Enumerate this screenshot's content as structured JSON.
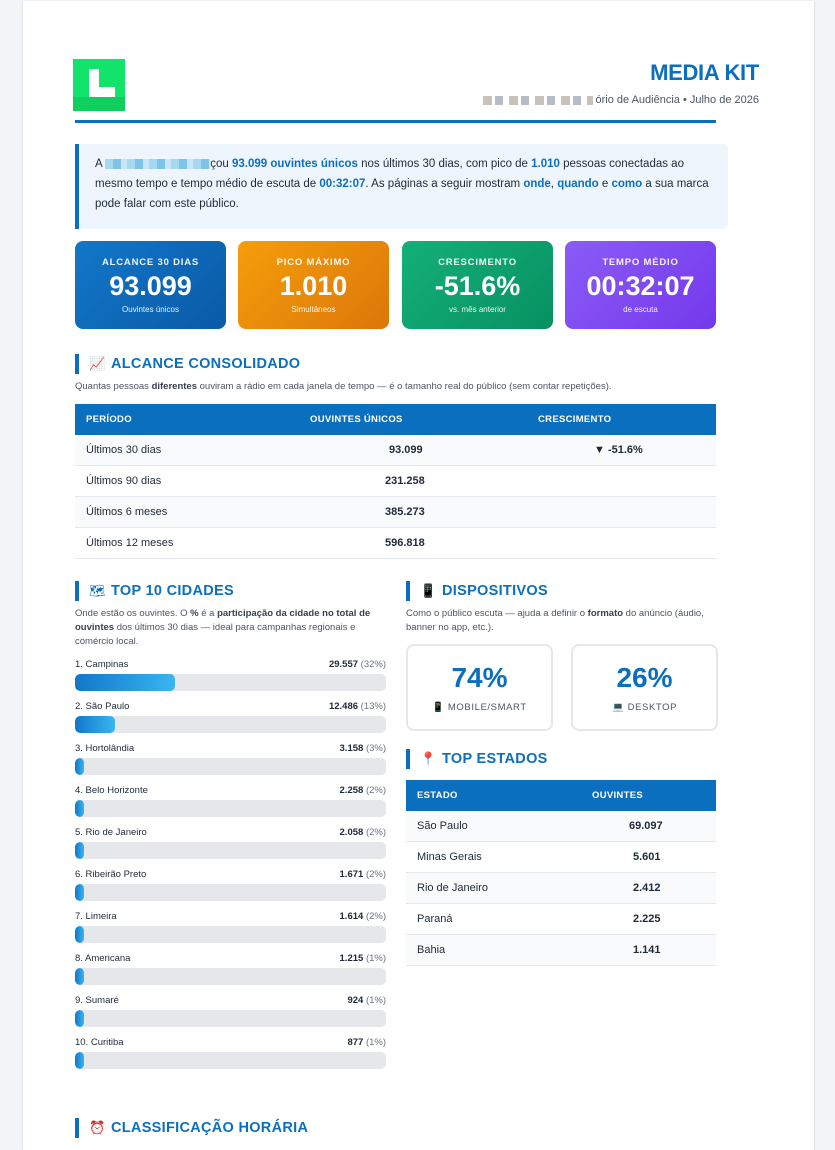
{
  "header": {
    "title": "MEDIA KIT",
    "subtitle_visible": "ório de Audiência • Julho de 2026"
  },
  "intro": {
    "lead": "A",
    "part1": "çou ",
    "listeners": "93.099 ouvintes únicos",
    "part2": " nos últimos 30 dias, com pico de ",
    "peak": "1.010",
    "part3": " pessoas conectadas ao mesmo tempo e tempo médio de escuta de ",
    "time": "00:32:07",
    "part4": ". As páginas a seguir mostram ",
    "w1": "onde",
    "comma": ", ",
    "w2": "quando",
    "part5": " e ",
    "w3": "como",
    "part6": " a sua marca pode falar com este público."
  },
  "kpis": [
    {
      "label": "ALCANCE 30 DIAS",
      "value": "93.099",
      "sub": "Ouvintes únicos"
    },
    {
      "label": "PICO MÁXIMO",
      "value": "1.010",
      "sub": "Simultâneos"
    },
    {
      "label": "CRESCIMENTO",
      "value": "-51.6%",
      "sub": "vs. mês anterior"
    },
    {
      "label": "TEMPO MÉDIO",
      "value": "00:32:07",
      "sub": "de escuta"
    }
  ],
  "reach": {
    "title": "ALCANCE CONSOLIDADO",
    "icon": "chart-icon",
    "desc_a": "Quantas pessoas ",
    "desc_b": "diferentes",
    "desc_c": " ouviram a rádio em cada janela de tempo — é o tamanho real do público (sem contar repetições).",
    "columns": [
      "PERÍODO",
      "OUVINTES ÚNICOS",
      "CRESCIMENTO"
    ],
    "rows": [
      {
        "period": "Últimos 30 dias",
        "listeners": "93.099",
        "growth": "▼ -51.6%"
      },
      {
        "period": "Últimos 90 dias",
        "listeners": "231.258",
        "growth": ""
      },
      {
        "period": "Últimos 6 meses",
        "listeners": "385.273",
        "growth": ""
      },
      {
        "period": "Últimos 12 meses",
        "listeners": "596.818",
        "growth": ""
      }
    ]
  },
  "cities": {
    "title": "TOP 10 CIDADES",
    "icon": "map-icon",
    "desc_a": "Onde estão os ouvintes. O ",
    "desc_b": "%",
    "desc_c": " é a ",
    "desc_d": "participação da cidade no total de ouvintes",
    "desc_e": " dos últimos 30 dias — ideal para campanhas regionais e comércio local.",
    "items": [
      {
        "name": "1. Campinas",
        "value": "29.557",
        "pct": "(32%)",
        "share": 32
      },
      {
        "name": "2. São Paulo",
        "value": "12.486",
        "pct": "(13%)",
        "share": 13
      },
      {
        "name": "3. Hortolândia",
        "value": "3.158",
        "pct": "(3%)",
        "share": 3
      },
      {
        "name": "4. Belo Horizonte",
        "value": "2.258",
        "pct": "(2%)",
        "share": 2
      },
      {
        "name": "5. Rio de Janeiro",
        "value": "2.058",
        "pct": "(2%)",
        "share": 2
      },
      {
        "name": "6. Ribeirão Preto",
        "value": "1.671",
        "pct": "(2%)",
        "share": 2
      },
      {
        "name": "7. Limeira",
        "value": "1.614",
        "pct": "(2%)",
        "share": 2
      },
      {
        "name": "8. Americana",
        "value": "1.215",
        "pct": "(1%)",
        "share": 1
      },
      {
        "name": "9. Sumaré",
        "value": "924",
        "pct": "(1%)",
        "share": 1
      },
      {
        "name": "10. Curitiba",
        "value": "877",
        "pct": "(1%)",
        "share": 1
      }
    ]
  },
  "devices": {
    "title": "DISPOSITIVOS",
    "icon": "phone-icon",
    "desc_a": "Como o público escuta — ajuda a definir o ",
    "desc_b": "formato",
    "desc_c": " do anúncio (áudio, banner no app, etc.).",
    "items": [
      {
        "pct": "74%",
        "label": "MOBILE/SMART",
        "icon": "phone-icon"
      },
      {
        "pct": "26%",
        "label": "DESKTOP",
        "icon": "desktop-icon"
      }
    ]
  },
  "states": {
    "title": "TOP ESTADOS",
    "icon": "pin-icon",
    "columns": [
      "ESTADO",
      "OUVINTES"
    ],
    "rows": [
      {
        "state": "São Paulo",
        "listeners": "69.097"
      },
      {
        "state": "Minas Gerais",
        "listeners": "5.601"
      },
      {
        "state": "Rio de Janeiro",
        "listeners": "2.412"
      },
      {
        "state": "Paraná",
        "listeners": "2.225"
      },
      {
        "state": "Bahia",
        "listeners": "1.141"
      }
    ]
  },
  "hours": {
    "title": "CLASSIFICAÇÃO HORÁRIA",
    "icon": "alarm-clock-icon"
  },
  "colors": {
    "primary": "#0b6fbf",
    "kpi_blue": "#1277c9",
    "kpi_orange": "#f59e0b",
    "kpi_green": "#14b07a",
    "kpi_purple": "#8b5cf6",
    "negative": "#ef4444",
    "logo_green": "#12e36a"
  }
}
